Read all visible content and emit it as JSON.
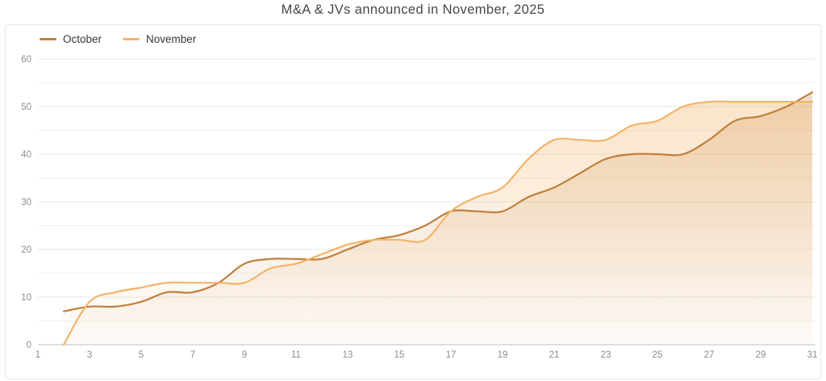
{
  "title": "M&A & JVs announced in November, 2025",
  "legend": {
    "position": "top-left"
  },
  "axis": {
    "y_labels": [
      "0",
      "10",
      "20",
      "30",
      "40",
      "50",
      "60"
    ],
    "x_labels": [
      "1",
      "3",
      "5",
      "7",
      "9",
      "11",
      "13",
      "15",
      "17",
      "19",
      "21",
      "23",
      "25",
      "27",
      "29",
      "31"
    ]
  },
  "colors": {
    "october_line": "#c07f3c",
    "november_line": "#f2b469",
    "grid_major": "#e7e7e7",
    "grid_minor": "#f1f1f1",
    "axis_line": "#d5d5d5",
    "tick_text": "#8d8d8d",
    "title_text": "#43474d"
  },
  "chart_data": {
    "type": "area",
    "title": "M&A & JVs announced in November, 2025",
    "xlabel": "",
    "ylabel": "",
    "xlim": [
      1,
      31
    ],
    "ylim": [
      0,
      60
    ],
    "ytick_step": 10,
    "grid_step": 5,
    "grid": "horizontal-only",
    "legend_position": "top-left",
    "curve": "smooth",
    "x": [
      2,
      3,
      4,
      5,
      6,
      7,
      8,
      9,
      10,
      11,
      12,
      13,
      14,
      15,
      16,
      17,
      18,
      19,
      20,
      21,
      22,
      23,
      24,
      25,
      26,
      27,
      28,
      29,
      30,
      31
    ],
    "xticks": [
      1,
      3,
      5,
      7,
      9,
      11,
      13,
      15,
      17,
      19,
      21,
      23,
      25,
      27,
      29,
      31
    ],
    "yticks": [
      0,
      10,
      20,
      30,
      40,
      50,
      60
    ],
    "series": [
      {
        "name": "October",
        "color": "#c07f3c",
        "values": [
          7,
          8,
          8,
          9,
          11,
          11,
          13,
          17,
          18,
          18,
          18,
          20,
          22,
          23,
          25,
          28,
          28,
          28,
          31,
          33,
          36,
          39,
          40,
          40,
          40,
          43,
          47,
          48,
          50,
          53
        ]
      },
      {
        "name": "November",
        "color": "#f2b469",
        "values": [
          0,
          9,
          11,
          12,
          13,
          13,
          13,
          13,
          16,
          17,
          19,
          21,
          22,
          22,
          22,
          28,
          31,
          33,
          39,
          43,
          43,
          43,
          46,
          47,
          50,
          51,
          51,
          51,
          51,
          51
        ]
      }
    ]
  }
}
